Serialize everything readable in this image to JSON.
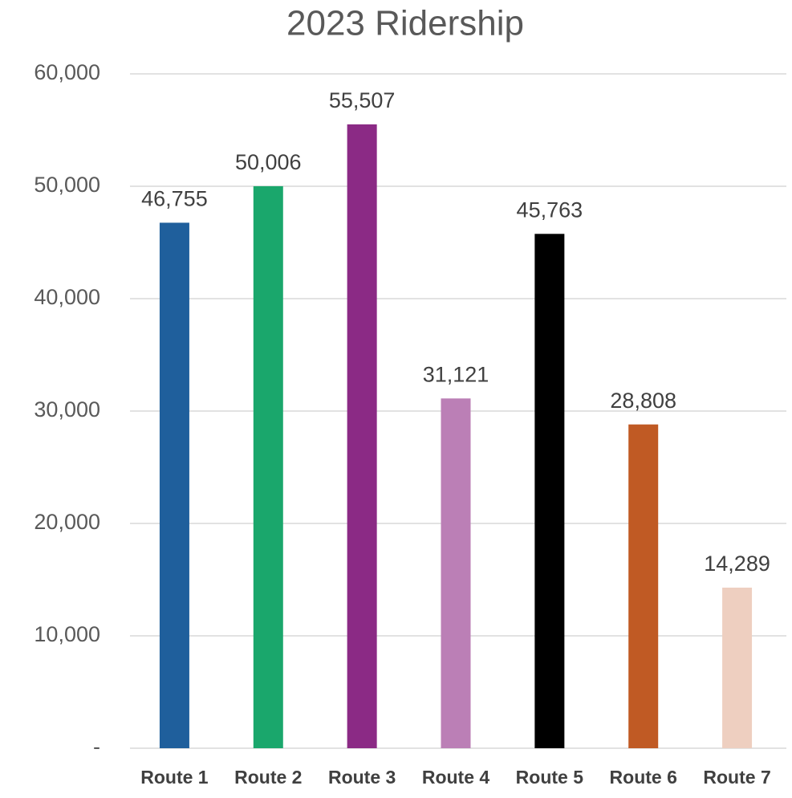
{
  "chart_data": {
    "type": "bar",
    "title": "2023 Ridership",
    "categories": [
      "Route 1",
      "Route 2",
      "Route 3",
      "Route 4",
      "Route 5",
      "Route 6",
      "Route 7"
    ],
    "values": [
      46755,
      50006,
      55507,
      31121,
      45763,
      28808,
      14289
    ],
    "value_labels": [
      "46,755",
      "50,006",
      "55,507",
      "31,121",
      "45,763",
      "28,808",
      "14,289"
    ],
    "colors": [
      "#1f5f9c",
      "#1aa76c",
      "#8b2a85",
      "#bb7fb6",
      "#000000",
      "#c05a24",
      "#eecfc0"
    ],
    "ylim": [
      0,
      60000
    ],
    "yticks": [
      {
        "value": 0,
        "label": "-"
      },
      {
        "value": 10000,
        "label": "10,000"
      },
      {
        "value": 20000,
        "label": "20,000"
      },
      {
        "value": 30000,
        "label": "30,000"
      },
      {
        "value": 40000,
        "label": "40,000"
      },
      {
        "value": 50000,
        "label": "50,000"
      },
      {
        "value": 60000,
        "label": "60,000"
      }
    ],
    "grid": true
  }
}
